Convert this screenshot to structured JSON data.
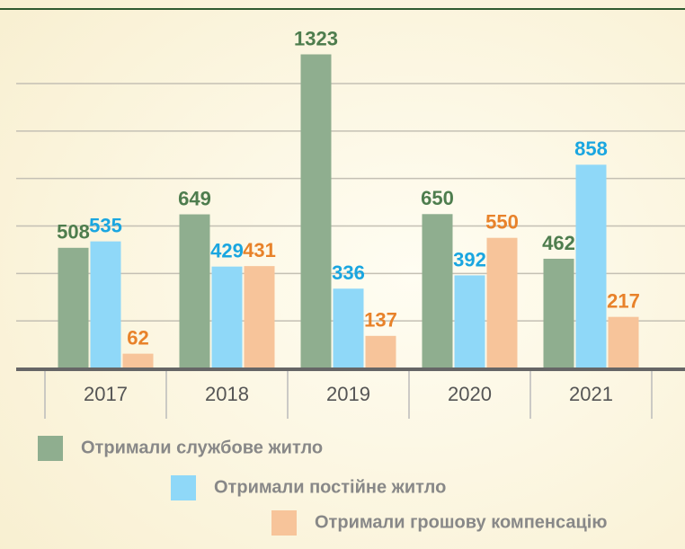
{
  "chart_data": {
    "type": "bar",
    "categories": [
      "2017",
      "2018",
      "2019",
      "2020",
      "2021"
    ],
    "series": [
      {
        "name": "Отримали службове житло",
        "color": "#8fae8f",
        "label_color": "#4e7d4e",
        "values": [
          508,
          649,
          1323,
          650,
          462
        ]
      },
      {
        "name": "Отримали постійне житло",
        "color": "#8fd8f8",
        "label_color": "#1aa6e0",
        "values": [
          535,
          429,
          336,
          392,
          858
        ]
      },
      {
        "name": "Отримали грошову компенсацію",
        "color": "#f7c49a",
        "label_color": "#e8822a",
        "values": [
          62,
          431,
          137,
          550,
          217
        ]
      }
    ],
    "ylim": [
      0,
      1340
    ],
    "yticks": [
      200,
      400,
      600,
      800,
      1000,
      1200
    ],
    "grid": true
  }
}
